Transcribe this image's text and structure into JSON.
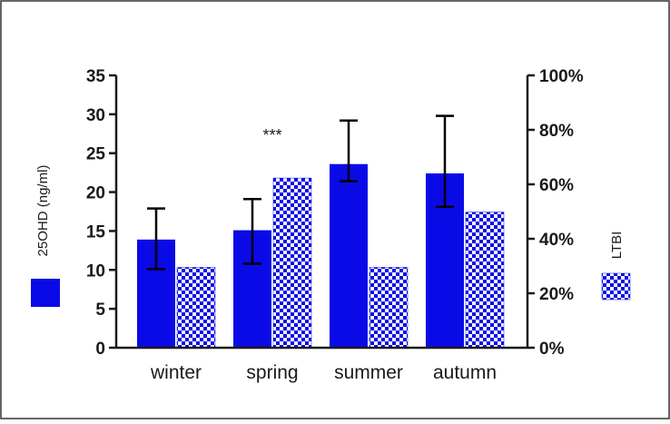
{
  "chart_data": {
    "type": "bar",
    "categories": [
      "winter",
      "spring",
      "summer",
      "autumn"
    ],
    "series": [
      {
        "name": "25OHD (ng/ml)",
        "axis": "left",
        "pattern": "solid",
        "values": [
          13.9,
          15.1,
          23.6,
          22.4
        ],
        "error_low": [
          10.1,
          10.8,
          21.4,
          18.1
        ],
        "error_high": [
          17.9,
          19.1,
          29.2,
          29.8
        ]
      },
      {
        "name": "LTBI",
        "axis": "right",
        "pattern": "checkered",
        "values": [
          29.5,
          62.3,
          29.5,
          49.8
        ]
      }
    ],
    "left_axis": {
      "label": "25OHD (ng/ml)",
      "ylim": [
        0,
        35
      ],
      "ticks": [
        "0",
        "5",
        "10",
        "15",
        "20",
        "25",
        "30",
        "35"
      ]
    },
    "right_axis": {
      "label": "LTBI",
      "ylim": [
        0,
        100
      ],
      "ticks": [
        "0%",
        "20%",
        "40%",
        "60%",
        "80%",
        "100%"
      ]
    },
    "annotations": [
      {
        "category": "spring",
        "text": "***"
      }
    ],
    "legend": "sides",
    "grid": false,
    "colors": {
      "bar": "#0a0ae6",
      "axis": "#1a1a1a",
      "frame": "#333333"
    }
  }
}
